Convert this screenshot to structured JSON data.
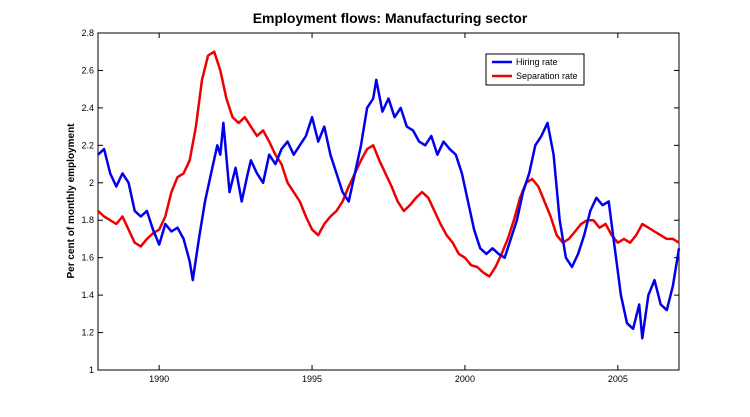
{
  "chart_data": {
    "type": "line",
    "title": "Employment flows: Manufacturing sector",
    "xlabel": "",
    "ylabel": "Per cent of monthly employment",
    "xlim": [
      1988,
      2007
    ],
    "ylim": [
      1,
      2.8
    ],
    "x_ticks": [
      1990,
      1995,
      2000,
      2005
    ],
    "y_ticks": [
      1,
      1.2,
      1.4,
      1.6,
      1.8,
      2,
      2.2,
      2.4,
      2.6,
      2.8
    ],
    "legend_position": "top-right",
    "series": [
      {
        "name": "Hiring rate",
        "color": "#0000ee",
        "points": [
          [
            1988.0,
            2.15
          ],
          [
            1988.2,
            2.18
          ],
          [
            1988.4,
            2.05
          ],
          [
            1988.6,
            1.98
          ],
          [
            1988.8,
            2.05
          ],
          [
            1989.0,
            2.0
          ],
          [
            1989.2,
            1.85
          ],
          [
            1989.4,
            1.82
          ],
          [
            1989.6,
            1.85
          ],
          [
            1989.8,
            1.75
          ],
          [
            1990.0,
            1.67
          ],
          [
            1990.2,
            1.78
          ],
          [
            1990.4,
            1.74
          ],
          [
            1990.6,
            1.76
          ],
          [
            1990.8,
            1.7
          ],
          [
            1991.0,
            1.58
          ],
          [
            1991.1,
            1.48
          ],
          [
            1991.3,
            1.7
          ],
          [
            1991.5,
            1.9
          ],
          [
            1991.7,
            2.05
          ],
          [
            1991.9,
            2.2
          ],
          [
            1992.0,
            2.15
          ],
          [
            1992.1,
            2.32
          ],
          [
            1992.3,
            1.95
          ],
          [
            1992.5,
            2.08
          ],
          [
            1992.7,
            1.9
          ],
          [
            1992.9,
            2.05
          ],
          [
            1993.0,
            2.12
          ],
          [
            1993.2,
            2.05
          ],
          [
            1993.4,
            2.0
          ],
          [
            1993.6,
            2.15
          ],
          [
            1993.8,
            2.1
          ],
          [
            1994.0,
            2.18
          ],
          [
            1994.2,
            2.22
          ],
          [
            1994.4,
            2.15
          ],
          [
            1994.6,
            2.2
          ],
          [
            1994.8,
            2.25
          ],
          [
            1995.0,
            2.35
          ],
          [
            1995.2,
            2.22
          ],
          [
            1995.4,
            2.3
          ],
          [
            1995.6,
            2.15
          ],
          [
            1995.8,
            2.05
          ],
          [
            1996.0,
            1.95
          ],
          [
            1996.2,
            1.9
          ],
          [
            1996.4,
            2.05
          ],
          [
            1996.6,
            2.2
          ],
          [
            1996.8,
            2.4
          ],
          [
            1997.0,
            2.45
          ],
          [
            1997.1,
            2.55
          ],
          [
            1997.3,
            2.38
          ],
          [
            1997.5,
            2.45
          ],
          [
            1997.7,
            2.35
          ],
          [
            1997.9,
            2.4
          ],
          [
            1998.1,
            2.3
          ],
          [
            1998.3,
            2.28
          ],
          [
            1998.5,
            2.22
          ],
          [
            1998.7,
            2.2
          ],
          [
            1998.9,
            2.25
          ],
          [
            1999.1,
            2.15
          ],
          [
            1999.3,
            2.22
          ],
          [
            1999.5,
            2.18
          ],
          [
            1999.7,
            2.15
          ],
          [
            1999.9,
            2.05
          ],
          [
            2000.1,
            1.9
          ],
          [
            2000.3,
            1.75
          ],
          [
            2000.5,
            1.65
          ],
          [
            2000.7,
            1.62
          ],
          [
            2000.9,
            1.65
          ],
          [
            2001.1,
            1.62
          ],
          [
            2001.3,
            1.6
          ],
          [
            2001.5,
            1.7
          ],
          [
            2001.7,
            1.8
          ],
          [
            2001.9,
            1.95
          ],
          [
            2002.1,
            2.05
          ],
          [
            2002.3,
            2.2
          ],
          [
            2002.5,
            2.25
          ],
          [
            2002.7,
            2.32
          ],
          [
            2002.9,
            2.15
          ],
          [
            2003.1,
            1.8
          ],
          [
            2003.3,
            1.6
          ],
          [
            2003.5,
            1.55
          ],
          [
            2003.7,
            1.62
          ],
          [
            2003.9,
            1.72
          ],
          [
            2004.1,
            1.85
          ],
          [
            2004.3,
            1.92
          ],
          [
            2004.5,
            1.88
          ],
          [
            2004.7,
            1.9
          ],
          [
            2004.9,
            1.65
          ],
          [
            2005.1,
            1.4
          ],
          [
            2005.3,
            1.25
          ],
          [
            2005.5,
            1.22
          ],
          [
            2005.7,
            1.35
          ],
          [
            2005.8,
            1.17
          ],
          [
            2006.0,
            1.4
          ],
          [
            2006.2,
            1.48
          ],
          [
            2006.4,
            1.35
          ],
          [
            2006.6,
            1.32
          ],
          [
            2006.8,
            1.45
          ],
          [
            2007.0,
            1.65
          ]
        ]
      },
      {
        "name": "Separation rate",
        "color": "#ee0000",
        "points": [
          [
            1988.0,
            1.85
          ],
          [
            1988.2,
            1.82
          ],
          [
            1988.4,
            1.8
          ],
          [
            1988.6,
            1.78
          ],
          [
            1988.8,
            1.82
          ],
          [
            1989.0,
            1.75
          ],
          [
            1989.2,
            1.68
          ],
          [
            1989.4,
            1.66
          ],
          [
            1989.6,
            1.7
          ],
          [
            1989.8,
            1.73
          ],
          [
            1990.0,
            1.75
          ],
          [
            1990.2,
            1.82
          ],
          [
            1990.4,
            1.95
          ],
          [
            1990.6,
            2.03
          ],
          [
            1990.8,
            2.05
          ],
          [
            1991.0,
            2.12
          ],
          [
            1991.2,
            2.3
          ],
          [
            1991.4,
            2.55
          ],
          [
            1991.6,
            2.68
          ],
          [
            1991.8,
            2.7
          ],
          [
            1992.0,
            2.6
          ],
          [
            1992.2,
            2.45
          ],
          [
            1992.4,
            2.35
          ],
          [
            1992.6,
            2.32
          ],
          [
            1992.8,
            2.35
          ],
          [
            1993.0,
            2.3
          ],
          [
            1993.2,
            2.25
          ],
          [
            1993.4,
            2.28
          ],
          [
            1993.6,
            2.22
          ],
          [
            1993.8,
            2.15
          ],
          [
            1994.0,
            2.1
          ],
          [
            1994.2,
            2.0
          ],
          [
            1994.4,
            1.95
          ],
          [
            1994.6,
            1.9
          ],
          [
            1994.8,
            1.82
          ],
          [
            1995.0,
            1.75
          ],
          [
            1995.2,
            1.72
          ],
          [
            1995.4,
            1.78
          ],
          [
            1995.6,
            1.82
          ],
          [
            1995.8,
            1.85
          ],
          [
            1996.0,
            1.9
          ],
          [
            1996.2,
            1.98
          ],
          [
            1996.4,
            2.05
          ],
          [
            1996.6,
            2.12
          ],
          [
            1996.8,
            2.18
          ],
          [
            1997.0,
            2.2
          ],
          [
            1997.2,
            2.12
          ],
          [
            1997.4,
            2.05
          ],
          [
            1997.6,
            1.98
          ],
          [
            1997.8,
            1.9
          ],
          [
            1998.0,
            1.85
          ],
          [
            1998.2,
            1.88
          ],
          [
            1998.4,
            1.92
          ],
          [
            1998.6,
            1.95
          ],
          [
            1998.8,
            1.92
          ],
          [
            1999.0,
            1.85
          ],
          [
            1999.2,
            1.78
          ],
          [
            1999.4,
            1.72
          ],
          [
            1999.6,
            1.68
          ],
          [
            1999.8,
            1.62
          ],
          [
            2000.0,
            1.6
          ],
          [
            2000.2,
            1.56
          ],
          [
            2000.4,
            1.55
          ],
          [
            2000.6,
            1.52
          ],
          [
            2000.8,
            1.5
          ],
          [
            2001.0,
            1.55
          ],
          [
            2001.2,
            1.62
          ],
          [
            2001.4,
            1.7
          ],
          [
            2001.6,
            1.8
          ],
          [
            2001.8,
            1.92
          ],
          [
            2002.0,
            2.0
          ],
          [
            2002.2,
            2.02
          ],
          [
            2002.4,
            1.98
          ],
          [
            2002.6,
            1.9
          ],
          [
            2002.8,
            1.82
          ],
          [
            2003.0,
            1.72
          ],
          [
            2003.2,
            1.68
          ],
          [
            2003.4,
            1.7
          ],
          [
            2003.6,
            1.74
          ],
          [
            2003.8,
            1.78
          ],
          [
            2004.0,
            1.8
          ],
          [
            2004.2,
            1.8
          ],
          [
            2004.4,
            1.76
          ],
          [
            2004.6,
            1.78
          ],
          [
            2004.8,
            1.72
          ],
          [
            2005.0,
            1.68
          ],
          [
            2005.2,
            1.7
          ],
          [
            2005.4,
            1.68
          ],
          [
            2005.6,
            1.72
          ],
          [
            2005.8,
            1.78
          ],
          [
            2006.0,
            1.76
          ],
          [
            2006.2,
            1.74
          ],
          [
            2006.4,
            1.72
          ],
          [
            2006.6,
            1.7
          ],
          [
            2006.8,
            1.7
          ],
          [
            2007.0,
            1.68
          ]
        ]
      }
    ]
  }
}
